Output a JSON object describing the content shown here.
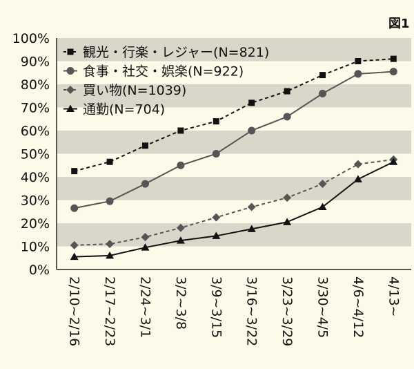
{
  "figure_label": "図1",
  "chart_data": {
    "type": "line",
    "categories": [
      "2/10~2/16",
      "2/17~2/23",
      "2/24~3/1",
      "3/2~3/8",
      "3/9~3/15",
      "3/16~3/22",
      "3/23~3/29",
      "3/30~4/5",
      "4/6~4/12",
      "4/13~"
    ],
    "y_ticks": [
      "0%",
      "10%",
      "20%",
      "30%",
      "40%",
      "50%",
      "60%",
      "70%",
      "80%",
      "90%",
      "100%"
    ],
    "ylim": [
      0,
      100
    ],
    "legend_position": "top-left",
    "grid": "alternating horizontal bands",
    "series": [
      {
        "name": "観光・行楽・レジャー(N=821)",
        "marker": "square",
        "line": "dashed",
        "color": "#111111",
        "values": [
          42.5,
          46.5,
          53.5,
          60,
          64,
          72,
          77,
          84,
          90,
          91
        ]
      },
      {
        "name": "食事・社交・娯楽(N=922)",
        "marker": "circle",
        "line": "solid",
        "color": "#555555",
        "values": [
          26.5,
          29.5,
          37,
          45,
          50,
          60,
          66,
          76,
          84.5,
          85.5
        ]
      },
      {
        "name": "買い物(N=1039)",
        "marker": "diamond",
        "line": "dashed",
        "color": "#555555",
        "values": [
          10.5,
          11,
          14,
          18,
          22.5,
          27,
          31,
          37,
          45.5,
          47.5
        ]
      },
      {
        "name": "通勤(N=704)",
        "marker": "triangle",
        "line": "solid",
        "color": "#111111",
        "values": [
          5.5,
          6,
          9.5,
          12.5,
          14.5,
          17.5,
          20.5,
          27,
          39,
          46.5
        ]
      }
    ]
  }
}
